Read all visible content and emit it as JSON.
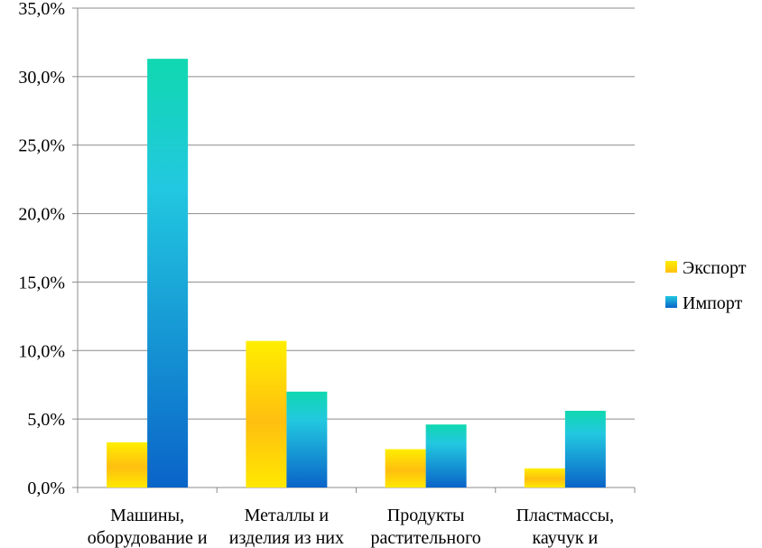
{
  "chart_data": {
    "type": "bar",
    "categories": [
      [
        "Машины,",
        "оборудование и"
      ],
      [
        "Металлы и",
        "изделия из них"
      ],
      [
        "Продукты",
        "растительного"
      ],
      [
        "Пластмассы,",
        "каучук и"
      ]
    ],
    "series": [
      {
        "name": "Экспорт",
        "values": [
          3.3,
          10.7,
          2.8,
          1.4
        ]
      },
      {
        "name": "Импорт",
        "values": [
          31.3,
          7.0,
          4.6,
          5.6
        ]
      }
    ],
    "ylim": [
      0,
      35
    ],
    "yticks": [
      "0,0%",
      "5,0%",
      "10,0%",
      "15,0%",
      "20,0%",
      "25,0%",
      "30,0%",
      "35,0%"
    ],
    "grid": true,
    "legend_position": "right"
  }
}
